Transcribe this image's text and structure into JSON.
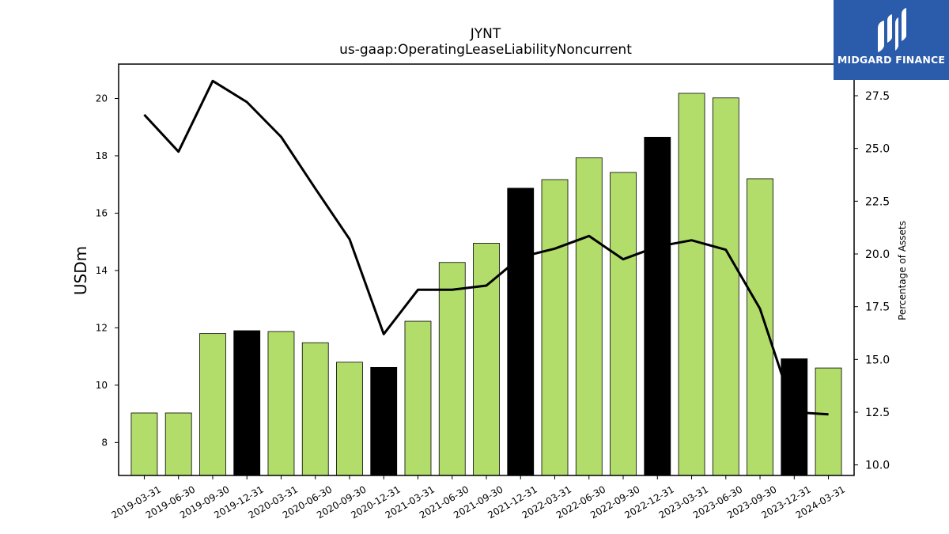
{
  "chart_data": {
    "type": "bar",
    "title": "JYNT",
    "subtitle": "us-gaap:OperatingLeaseLiabilityNoncurrent",
    "ylabel": "USDm",
    "y2label": "Percentage of Assets",
    "ylim": [
      6.85,
      21.2
    ],
    "y2lim": [
      9.5,
      29.0
    ],
    "yticks": [
      "8",
      "10",
      "12",
      "14",
      "16",
      "18",
      "20"
    ],
    "y2ticks": [
      "10.0",
      "12.5",
      "15.0",
      "17.5",
      "20.0",
      "22.5",
      "25.0",
      "27.5"
    ],
    "categories": [
      "2019-03-31",
      "2019-06-30",
      "2019-09-30",
      "2019-12-31",
      "2020-03-31",
      "2020-06-30",
      "2020-09-30",
      "2020-12-31",
      "2021-03-31",
      "2021-06-30",
      "2021-09-30",
      "2021-12-31",
      "2022-03-31",
      "2022-06-30",
      "2022-09-30",
      "2022-12-31",
      "2023-03-31",
      "2023-06-30",
      "2023-09-30",
      "2023-12-31",
      "2024-03-31"
    ],
    "series": [
      {
        "type": "bar",
        "values": [
          9.03,
          9.03,
          11.8,
          11.9,
          11.87,
          11.48,
          10.8,
          10.62,
          12.23,
          14.28,
          14.95,
          16.87,
          17.17,
          17.93,
          17.42,
          18.65,
          20.18,
          20.02,
          17.2,
          10.92,
          10.6
        ],
        "colors": [
          "#b3dd6a",
          "#b3dd6a",
          "#b3dd6a",
          "#000000",
          "#b3dd6a",
          "#b3dd6a",
          "#b3dd6a",
          "#000000",
          "#b3dd6a",
          "#b3dd6a",
          "#b3dd6a",
          "#000000",
          "#b3dd6a",
          "#b3dd6a",
          "#b3dd6a",
          "#000000",
          "#b3dd6a",
          "#b3dd6a",
          "#b3dd6a",
          "#000000",
          "#b3dd6a"
        ]
      },
      {
        "type": "line",
        "axis": "right",
        "values": [
          26.6,
          24.85,
          28.2,
          27.2,
          25.55,
          23.1,
          20.7,
          16.2,
          18.3,
          18.3,
          18.5,
          19.85,
          20.25,
          20.85,
          19.75,
          20.35,
          20.65,
          20.2,
          17.4,
          12.5,
          12.4
        ]
      }
    ],
    "colors": {
      "bar_main": "#b3dd6a",
      "bar_highlight": "#000000",
      "line": "#000000"
    }
  },
  "logo": {
    "text": "MIDGARD FINANCE",
    "background": "#2b5bab"
  }
}
